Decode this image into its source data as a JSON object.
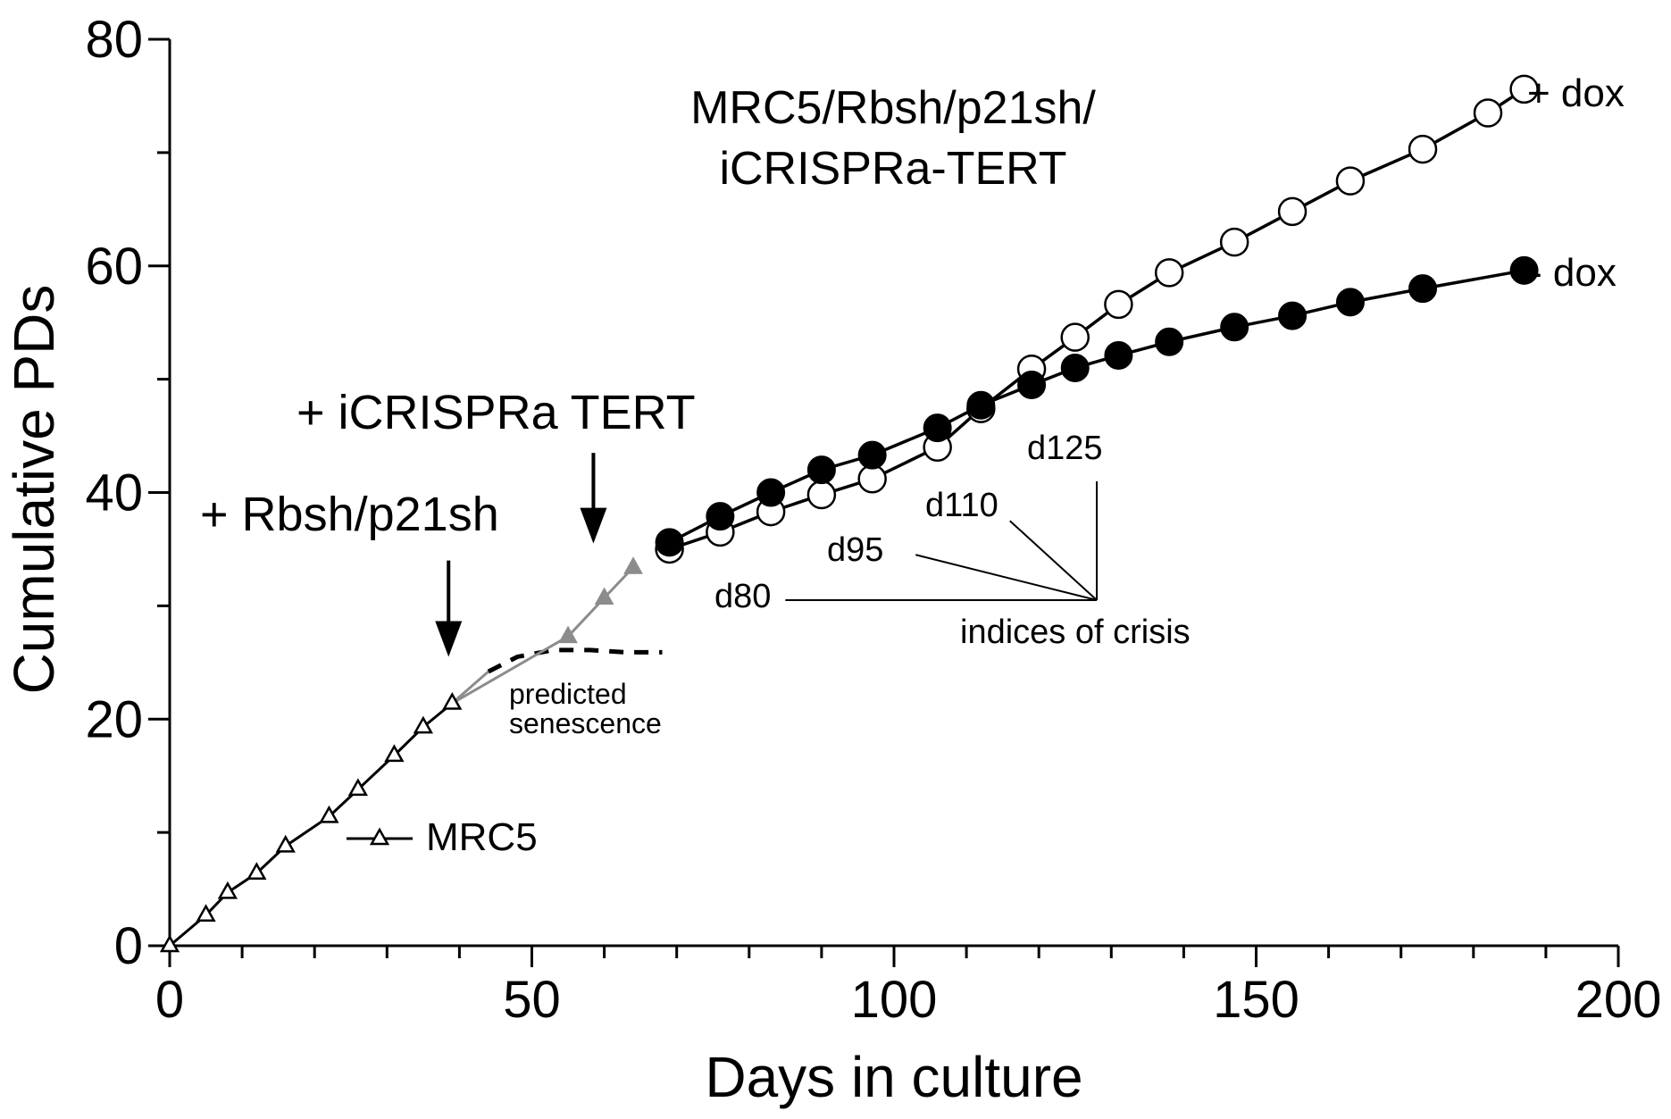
{
  "chart_data": {
    "type": "line",
    "title": [
      "MRC5/Rbsh/p21sh/",
      "iCRISPRa-TERT"
    ],
    "xlabel": "Days in culture",
    "ylabel": "Cumulative PDs",
    "xlim": [
      0,
      200
    ],
    "ylim": [
      0,
      80
    ],
    "xticks": [
      "0",
      "50",
      "100",
      "150",
      "200"
    ],
    "yticks": [
      "0",
      "20",
      "40",
      "60",
      "80"
    ],
    "grid": false,
    "series": [
      {
        "name": "MRC5",
        "marker": "open-triangle",
        "color": "#000000",
        "x": [
          0,
          5,
          8,
          12,
          16,
          22,
          26,
          31,
          35,
          39
        ],
        "y": [
          0,
          2.7,
          4.7,
          6.4,
          8.8,
          11.4,
          13.8,
          16.8,
          19.3,
          21.4
        ]
      },
      {
        "name": "+ Rbsh/p21sh",
        "marker": "filled-triangle",
        "color": "#8c8c8c",
        "x": [
          39,
          55,
          60,
          64
        ],
        "y": [
          21.4,
          27.3,
          30.7,
          33.4
        ]
      },
      {
        "name": "+ dox",
        "marker": "open-circle",
        "color": "#000000",
        "x": [
          69,
          76,
          83,
          90,
          97,
          106,
          112,
          119,
          125,
          131,
          138,
          147,
          155,
          163,
          173,
          182,
          187
        ],
        "y": [
          35,
          36.5,
          38.3,
          39.8,
          41.2,
          44,
          47.4,
          50.9,
          53.7,
          56.6,
          59.4,
          62.1,
          64.8,
          67.5,
          70.3,
          73.5,
          75.6
        ]
      },
      {
        "name": "- dox",
        "marker": "filled-circle",
        "color": "#000000",
        "x": [
          69,
          76,
          83,
          90,
          97,
          106,
          112,
          119,
          125,
          131,
          138,
          147,
          155,
          163,
          173,
          187
        ],
        "y": [
          35.6,
          37.9,
          40,
          42,
          43.3,
          45.7,
          47.7,
          49.5,
          51,
          52.1,
          53.3,
          54.6,
          55.6,
          56.8,
          58,
          59.6
        ]
      }
    ],
    "predicted_senescence": {
      "x": [
        39,
        44,
        48,
        53,
        58,
        63,
        68
      ],
      "y": [
        21.4,
        24.2,
        25.5,
        26.1,
        26.1,
        25.9,
        25.9
      ]
    },
    "annotations": {
      "series_labels": {
        "plus_dox": "+ dox",
        "minus_dox": "- dox",
        "mrc5": "MRC5"
      },
      "arrows": [
        {
          "label": "+ Rbsh/p21sh",
          "x": 38.5,
          "y_from": 34,
          "y_to": 25.5
        },
        {
          "label": "+ iCRISPRa TERT",
          "x": 58.5,
          "y_from": 43.5,
          "y_to": 35.5
        }
      ],
      "predicted_senescence": [
        "predicted",
        "senescence"
      ],
      "crisis": {
        "label": "indices of crisis",
        "apex": [
          128,
          30.5
        ],
        "days": [
          {
            "label": "d80",
            "line_start": [
              85,
              30.5
            ]
          },
          {
            "label": "d95",
            "line_start": [
              103,
              34.5
            ]
          },
          {
            "label": "d110",
            "line_start": [
              116,
              37.5
            ]
          },
          {
            "label": "d125",
            "line_start": [
              128,
              41
            ]
          }
        ]
      }
    }
  }
}
